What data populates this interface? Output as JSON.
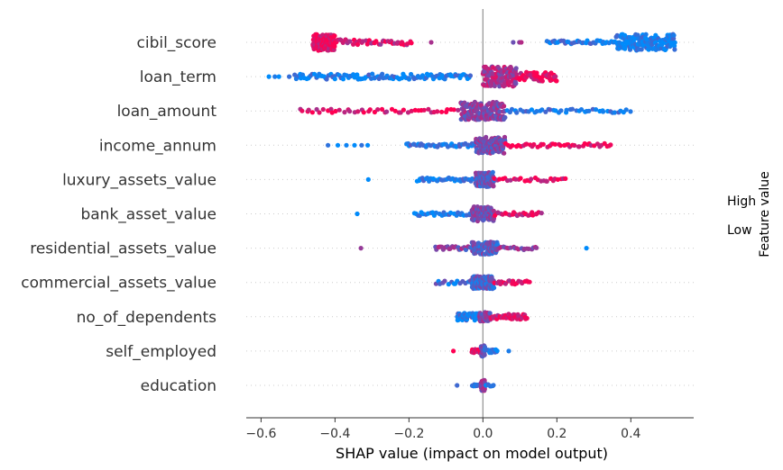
{
  "chart_data": {
    "type": "scatter",
    "subtype": "shap-beeswarm",
    "title": "",
    "xlabel": "SHAP value (impact on model output)",
    "ylabel": "",
    "xlim": [
      -0.64,
      0.57
    ],
    "xticks": [
      -0.6,
      -0.4,
      -0.2,
      0.0,
      0.2,
      0.4
    ],
    "xtick_labels": [
      "−0.6",
      "−0.4",
      "−0.2",
      "0.0",
      "0.2",
      "0.4"
    ],
    "grid": false,
    "zero_line": true,
    "features": [
      {
        "name": "cibil_score",
        "clusters": [
          {
            "lo": -0.46,
            "hi": -0.4,
            "n": 160,
            "spread": 9,
            "c": 0.92
          },
          {
            "lo": -0.4,
            "hi": -0.19,
            "n": 42,
            "spread": 3,
            "c": 0.82
          },
          {
            "lo": -0.14,
            "hi": -0.13,
            "n": 1,
            "spread": 0,
            "c": 0.55
          },
          {
            "lo": 0.08,
            "hi": 0.11,
            "n": 3,
            "spread": 0,
            "c": 0.5
          },
          {
            "lo": 0.17,
            "hi": 0.36,
            "n": 38,
            "spread": 2,
            "c": 0.12
          },
          {
            "lo": 0.36,
            "hi": 0.52,
            "n": 160,
            "spread": 9,
            "c": 0.05
          }
        ]
      },
      {
        "name": "loan_term",
        "clusters": [
          {
            "lo": -0.59,
            "hi": -0.52,
            "n": 4,
            "spread": 0,
            "c": 0.0
          },
          {
            "lo": -0.51,
            "hi": -0.03,
            "n": 110,
            "spread": 3,
            "c": 0.08
          },
          {
            "lo": 0.0,
            "hi": 0.09,
            "n": 130,
            "spread": 11,
            "c": 0.65
          },
          {
            "lo": 0.09,
            "hi": 0.2,
            "n": 60,
            "spread": 5,
            "c": 0.9
          }
        ]
      },
      {
        "name": "loan_amount",
        "clusters": [
          {
            "lo": -0.5,
            "hi": -0.06,
            "n": 48,
            "spread": 2,
            "c": 0.9
          },
          {
            "lo": -0.06,
            "hi": 0.06,
            "n": 170,
            "spread": 10,
            "c": 0.5
          },
          {
            "lo": 0.06,
            "hi": 0.4,
            "n": 45,
            "spread": 2,
            "c": 0.12
          }
        ]
      },
      {
        "name": "income_annum",
        "clusters": [
          {
            "lo": -0.43,
            "hi": -0.29,
            "n": 6,
            "spread": 0,
            "c": 0.05
          },
          {
            "lo": -0.21,
            "hi": -0.02,
            "n": 40,
            "spread": 2,
            "c": 0.12
          },
          {
            "lo": -0.02,
            "hi": 0.06,
            "n": 130,
            "spread": 9,
            "c": 0.5
          },
          {
            "lo": 0.06,
            "hi": 0.35,
            "n": 45,
            "spread": 2,
            "c": 0.92
          }
        ]
      },
      {
        "name": "luxury_assets_value",
        "clusters": [
          {
            "lo": -0.31,
            "hi": -0.31,
            "n": 1,
            "spread": 0,
            "c": 0.0
          },
          {
            "lo": -0.18,
            "hi": -0.02,
            "n": 35,
            "spread": 2,
            "c": 0.1
          },
          {
            "lo": -0.02,
            "hi": 0.03,
            "n": 110,
            "spread": 8,
            "c": 0.4
          },
          {
            "lo": 0.03,
            "hi": 0.23,
            "n": 28,
            "spread": 2,
            "c": 0.9
          }
        ]
      },
      {
        "name": "bank_asset_value",
        "clusters": [
          {
            "lo": -0.34,
            "hi": -0.34,
            "n": 1,
            "spread": 0,
            "c": 0.0
          },
          {
            "lo": -0.19,
            "hi": -0.03,
            "n": 28,
            "spread": 2,
            "c": 0.12
          },
          {
            "lo": -0.03,
            "hi": 0.03,
            "n": 110,
            "spread": 8,
            "c": 0.45
          },
          {
            "lo": 0.03,
            "hi": 0.16,
            "n": 25,
            "spread": 2,
            "c": 0.88
          }
        ]
      },
      {
        "name": "residential_assets_value",
        "clusters": [
          {
            "lo": -0.33,
            "hi": -0.33,
            "n": 1,
            "spread": 0,
            "c": 0.55
          },
          {
            "lo": -0.13,
            "hi": -0.03,
            "n": 25,
            "spread": 2,
            "c": 0.5
          },
          {
            "lo": -0.03,
            "hi": 0.04,
            "n": 100,
            "spread": 7,
            "c": 0.35
          },
          {
            "lo": 0.04,
            "hi": 0.15,
            "n": 20,
            "spread": 2,
            "c": 0.6
          },
          {
            "lo": 0.28,
            "hi": 0.28,
            "n": 1,
            "spread": 0,
            "c": 0.0
          }
        ]
      },
      {
        "name": "commercial_assets_value",
        "clusters": [
          {
            "lo": -0.13,
            "hi": -0.03,
            "n": 15,
            "spread": 2,
            "c": 0.2
          },
          {
            "lo": -0.03,
            "hi": 0.03,
            "n": 100,
            "spread": 7,
            "c": 0.3
          },
          {
            "lo": 0.03,
            "hi": 0.13,
            "n": 20,
            "spread": 2,
            "c": 0.85
          }
        ]
      },
      {
        "name": "no_of_dependents",
        "clusters": [
          {
            "lo": -0.07,
            "hi": -0.01,
            "n": 50,
            "spread": 4,
            "c": 0.1
          },
          {
            "lo": -0.01,
            "hi": 0.02,
            "n": 60,
            "spread": 5,
            "c": 0.5
          },
          {
            "lo": 0.02,
            "hi": 0.12,
            "n": 45,
            "spread": 3,
            "c": 0.85
          }
        ]
      },
      {
        "name": "self_employed",
        "clusters": [
          {
            "lo": -0.08,
            "hi": -0.08,
            "n": 1,
            "spread": 0,
            "c": 0.95
          },
          {
            "lo": -0.03,
            "hi": -0.005,
            "n": 20,
            "spread": 2,
            "c": 0.9
          },
          {
            "lo": -0.005,
            "hi": 0.005,
            "n": 50,
            "spread": 6,
            "c": 0.5
          },
          {
            "lo": 0.005,
            "hi": 0.04,
            "n": 15,
            "spread": 2,
            "c": 0.1
          },
          {
            "lo": 0.07,
            "hi": 0.07,
            "n": 1,
            "spread": 0,
            "c": 0.0
          }
        ]
      },
      {
        "name": "education",
        "clusters": [
          {
            "lo": -0.07,
            "hi": -0.07,
            "n": 1,
            "spread": 0,
            "c": 0.0
          },
          {
            "lo": -0.03,
            "hi": -0.005,
            "n": 10,
            "spread": 1,
            "c": 0.1
          },
          {
            "lo": -0.005,
            "hi": 0.005,
            "n": 60,
            "spread": 6,
            "c": 0.6
          },
          {
            "lo": 0.005,
            "hi": 0.03,
            "n": 8,
            "spread": 1,
            "c": 0.1
          }
        ]
      }
    ],
    "colorbar": {
      "title": "Feature value",
      "high_label": "High",
      "low_label": "Low",
      "low_color": "#008bfb",
      "high_color": "#ff0052"
    }
  }
}
